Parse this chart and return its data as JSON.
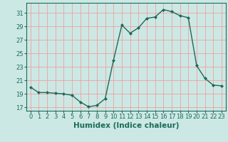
{
  "x": [
    0,
    1,
    2,
    3,
    4,
    5,
    6,
    7,
    8,
    9,
    10,
    11,
    12,
    13,
    14,
    15,
    16,
    17,
    18,
    19,
    20,
    21,
    22,
    23
  ],
  "y": [
    20.0,
    19.2,
    19.2,
    19.1,
    19.0,
    18.8,
    17.8,
    17.1,
    17.3,
    18.3,
    24.0,
    29.2,
    28.0,
    28.8,
    30.2,
    30.4,
    31.5,
    31.2,
    30.6,
    30.3,
    23.2,
    21.3,
    20.3,
    20.2
  ],
  "line_color": "#1a6b5a",
  "marker": "D",
  "marker_size": 2.0,
  "bg_color": "#cce8e4",
  "grid_color": "#f0a0a0",
  "xlabel": "Humidex (Indice chaleur)",
  "ylabel": "",
  "yticks": [
    17,
    19,
    21,
    23,
    25,
    27,
    29,
    31
  ],
  "xticks": [
    0,
    1,
    2,
    3,
    4,
    5,
    6,
    7,
    8,
    9,
    10,
    11,
    12,
    13,
    14,
    15,
    16,
    17,
    18,
    19,
    20,
    21,
    22,
    23
  ],
  "ylim": [
    16.5,
    32.5
  ],
  "xlim": [
    -0.5,
    23.5
  ],
  "tick_fontsize": 6.0,
  "xlabel_fontsize": 7.5,
  "lw": 1.0
}
